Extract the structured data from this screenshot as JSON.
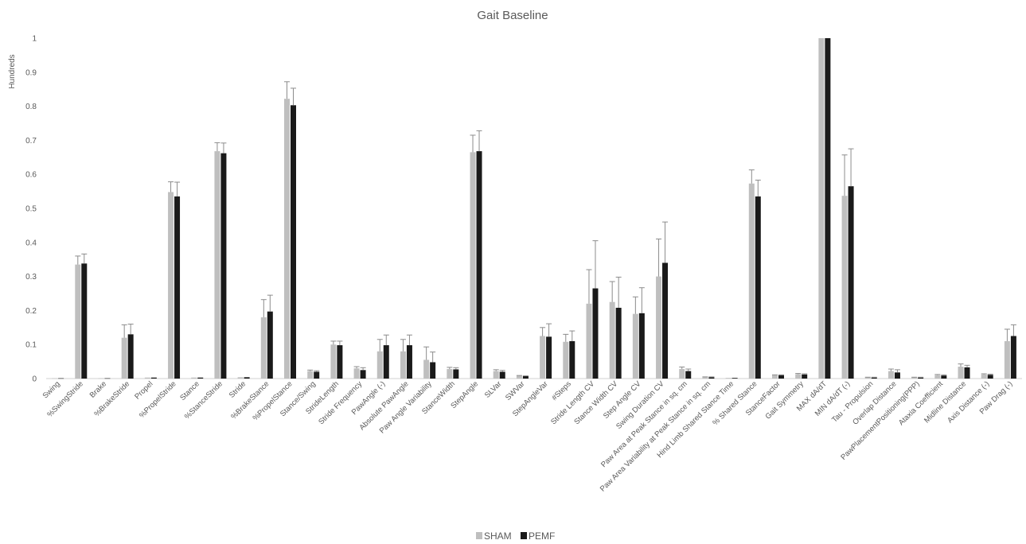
{
  "chart_data": {
    "type": "bar",
    "title": "Gait Baseline",
    "ylabel": "Hundreds",
    "xlabel": "",
    "ylim": [
      0,
      1
    ],
    "yticks": [
      "0",
      "0.1",
      "0.2",
      "0.3",
      "0.4",
      "0.5",
      "0.6",
      "0.7",
      "0.8",
      "0.9",
      "1"
    ],
    "grid": false,
    "legend_position": "bottom",
    "error_bars": true,
    "categories": [
      "Swing",
      "%SwingStride",
      "Brake",
      "%BrakeStride",
      "Propel",
      "%PropelStride",
      "Stance",
      "%StanceStride",
      "Stride",
      "%BrakeStance",
      "%PropelStance",
      "Stance/Swing",
      "StrideLength",
      "Stride Frequency",
      "PawAngle (-)",
      "Absolute PawAngle",
      "Paw Angle Variability",
      "StanceWidth",
      "StepAngle",
      "SLVar",
      "SWVar",
      "StepAngleVar",
      "#Steps",
      "Stride Length CV",
      "Stance Width CV",
      "Step Angle CV",
      "Swing Duration CV",
      "Paw Area at Peak Stance in sq. cm",
      "Paw Area Variability at Peak Stance in sq. cm",
      "Hind Limb Shared Stance Time",
      "% Shared Stance",
      "StanceFactor",
      "Gait Symmetry",
      "MAX dA/dT",
      "MIN dA/dT (-)",
      "Tau - Propulsion",
      "Overlap Distance",
      "PawPlacementPositioning(PPP)",
      "Ataxia Coefficient",
      "Midline Distance",
      "Axis Distance (-)",
      "Paw Drag (-)"
    ],
    "series": [
      {
        "name": "SHAM",
        "color": "#bfbfbf",
        "values": [
          0.001,
          0.335,
          0.001,
          0.12,
          0.003,
          0.548,
          0.003,
          0.668,
          0.004,
          0.18,
          0.822,
          0.022,
          0.1,
          0.03,
          0.08,
          0.08,
          0.055,
          0.028,
          0.665,
          0.022,
          0.008,
          0.125,
          0.108,
          0.22,
          0.225,
          0.19,
          0.3,
          0.028,
          0.004,
          0.002,
          0.573,
          0.01,
          0.013,
          1.0,
          0.537,
          0.003,
          0.022,
          0.003,
          0.01,
          0.035,
          0.012,
          0.11
        ],
        "errors": [
          0.0,
          0.025,
          0.0,
          0.038,
          0.0,
          0.03,
          0.0,
          0.025,
          0.0,
          0.052,
          0.05,
          0.003,
          0.01,
          0.005,
          0.035,
          0.035,
          0.038,
          0.005,
          0.05,
          0.004,
          0.001,
          0.025,
          0.022,
          0.1,
          0.06,
          0.05,
          0.11,
          0.006,
          0.001,
          0.0,
          0.04,
          0.001,
          0.002,
          0.0,
          0.12,
          0.001,
          0.006,
          0.001,
          0.002,
          0.008,
          0.002,
          0.035
        ]
      },
      {
        "name": "PEMF",
        "color": "#1a1a1a",
        "values": [
          0.001,
          0.338,
          0.001,
          0.13,
          0.003,
          0.535,
          0.003,
          0.662,
          0.004,
          0.197,
          0.803,
          0.02,
          0.098,
          0.025,
          0.098,
          0.098,
          0.048,
          0.027,
          0.668,
          0.02,
          0.007,
          0.123,
          0.11,
          0.265,
          0.208,
          0.192,
          0.34,
          0.022,
          0.004,
          0.002,
          0.535,
          0.01,
          0.012,
          1.0,
          0.565,
          0.003,
          0.018,
          0.003,
          0.009,
          0.033,
          0.011,
          0.125
        ],
        "errors": [
          0.0,
          0.028,
          0.0,
          0.03,
          0.0,
          0.042,
          0.0,
          0.03,
          0.0,
          0.048,
          0.05,
          0.003,
          0.012,
          0.007,
          0.03,
          0.03,
          0.03,
          0.005,
          0.06,
          0.004,
          0.001,
          0.038,
          0.03,
          0.14,
          0.09,
          0.075,
          0.12,
          0.006,
          0.001,
          0.0,
          0.048,
          0.001,
          0.002,
          0.0,
          0.11,
          0.001,
          0.008,
          0.001,
          0.002,
          0.006,
          0.002,
          0.033
        ]
      }
    ]
  }
}
